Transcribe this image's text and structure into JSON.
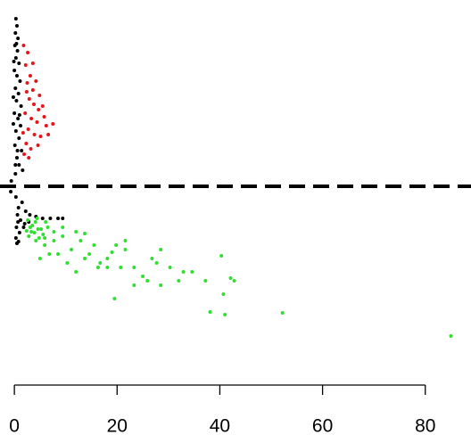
{
  "chart_data": {
    "type": "scatter",
    "xlim": [
      -2.8,
      88.9
    ],
    "xticks": [
      0,
      20,
      40,
      60,
      80
    ],
    "ylim": [
      -10.55,
      10.45
    ],
    "hline": {
      "y": 0,
      "color": "#000000",
      "dashed": true
    },
    "series": [
      {
        "color": "#000000",
        "x": [
          0.3,
          0.5,
          0.2,
          0.7,
          0.1,
          0.6,
          0.3,
          0.9,
          0.0,
          0.5,
          1.1,
          0.2,
          0.8,
          0.4,
          1.3,
          0.0,
          0.7,
          1.2,
          0.3,
          0.9,
          0.1,
          1.4,
          0.5,
          0.9,
          1.6,
          0.2,
          -0.6,
          -1.3,
          -0.7,
          0.3,
          1.5,
          0.8,
          2.2,
          0.6,
          3.0,
          4.2,
          5.5,
          7.0,
          8.5,
          9.4,
          1.2,
          2.0,
          0.4,
          1.0,
          0.3,
          0.8,
          0.5,
          -0.2,
          -0.1,
          0.4,
          0.6,
          -0.2,
          1.0,
          0.2,
          0.7,
          1.8,
          2.8
        ],
        "y": [
          9.4,
          9.0,
          8.6,
          8.3,
          7.9,
          7.6,
          7.2,
          6.9,
          6.5,
          6.2,
          5.9,
          5.5,
          5.2,
          4.8,
          4.5,
          4.1,
          3.8,
          3.4,
          3.1,
          2.7,
          2.3,
          2.0,
          1.6,
          1.2,
          0.9,
          0.7,
          0.3,
          0.0,
          -0.3,
          -0.6,
          -0.9,
          -1.2,
          -1.4,
          -1.6,
          -1.6,
          -1.7,
          -1.8,
          -1.8,
          -1.8,
          -1.8,
          -1.9,
          -2.1,
          -2.3,
          -2.6,
          -2.9,
          -3.1,
          -3.2,
          5.0,
          7.0,
          8.0,
          2.0,
          3.5,
          4.0,
          1.2,
          -2.0,
          -2.3,
          -2.0
        ]
      },
      {
        "color": "#e8141a",
        "x": [
          1.8,
          2.6,
          2.2,
          3.1,
          2.5,
          3.6,
          4.2,
          2.9,
          3.8,
          4.7,
          5.5,
          2.1,
          3.3,
          4.4,
          6.2,
          7.5,
          2.7,
          3.9,
          5.1,
          2.3,
          3.2,
          4.6,
          1.9,
          2.8,
          3.6,
          4.9,
          5.8,
          2.4,
          1.7,
          6.6
        ],
        "y": [
          7.9,
          7.5,
          6.8,
          6.2,
          5.8,
          5.4,
          5.9,
          4.9,
          4.6,
          4.3,
          4.5,
          4.1,
          3.8,
          3.6,
          3.4,
          3.5,
          3.2,
          2.9,
          2.8,
          2.4,
          2.1,
          2.3,
          1.8,
          1.6,
          6.9,
          5.1,
          3.9,
          5.3,
          3.0,
          2.9
        ]
      },
      {
        "color": "#2fe02f",
        "x": [
          3.3,
          4.2,
          5.9,
          7.7,
          9.4,
          11.1,
          12.9,
          14.6,
          16.3,
          18.1,
          19.8,
          21.6,
          23.3,
          25.0,
          27.7,
          28.5,
          30.3,
          32.9,
          34.6,
          37.2,
          40.3,
          40.7,
          42.8,
          42.1,
          38.1,
          41.0,
          52.2,
          85.0,
          19.5,
          12.0,
          13.7,
          10.3,
          8.5,
          5.0,
          6.8,
          23.3,
          25.9,
          32.0,
          18.1,
          21.6,
          15.5,
          16.7,
          20.7,
          19.0,
          26.8,
          28.5,
          13.7,
          9.4,
          7.7,
          12.0,
          2.6,
          3.5,
          4.4,
          5.2,
          6.1,
          2.8,
          3.9,
          4.8,
          5.6,
          6.5,
          3.1,
          4.1,
          2.4,
          5.9,
          4.6
        ],
        "y": [
          -2.55,
          -3.05,
          -3.3,
          -3.05,
          -2.8,
          -3.55,
          -3.05,
          -3.8,
          -4.55,
          -4.05,
          -3.3,
          -3.55,
          -4.55,
          -5.05,
          -4.3,
          -3.55,
          -4.55,
          -4.8,
          -4.8,
          -5.3,
          -3.9,
          -6.05,
          -5.3,
          -5.15,
          -7.05,
          -7.2,
          -7.1,
          -8.4,
          -6.3,
          -4.8,
          -4.05,
          -4.3,
          -3.8,
          -4.05,
          -3.8,
          -5.55,
          -5.3,
          -5.3,
          -4.55,
          -3.05,
          -3.3,
          -4.3,
          -4.55,
          -3.7,
          -4.05,
          -5.55,
          -2.65,
          -2.3,
          -2.55,
          -2.55,
          -1.9,
          -2.2,
          -1.8,
          -2.4,
          -2.0,
          -2.8,
          -2.6,
          -2.9,
          -2.7,
          -2.3,
          -2.3,
          -2.0,
          -2.5,
          -2.9,
          -2.4
        ]
      }
    ]
  }
}
